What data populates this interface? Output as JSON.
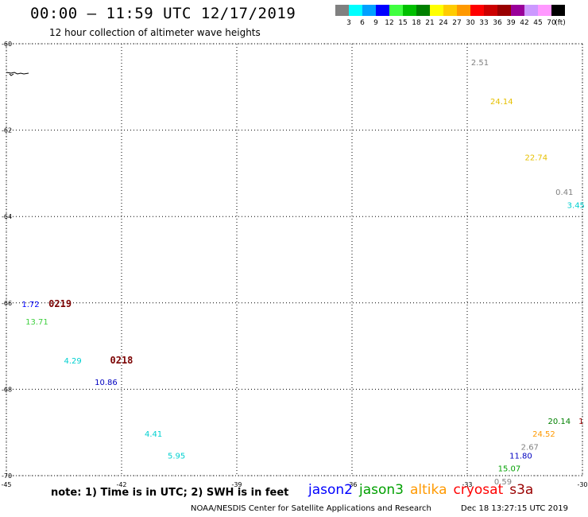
{
  "header": {
    "title": "00:00 — 11:59 UTC 12/17/2019",
    "subtitle": "12 hour collection of altimeter wave heights"
  },
  "colorbar": {
    "unit": "(ft)",
    "bins": [
      {
        "label": "3",
        "color": "#808080"
      },
      {
        "label": "6",
        "color": "#00ffff"
      },
      {
        "label": "9",
        "color": "#00a0ff"
      },
      {
        "label": "12",
        "color": "#0000ff"
      },
      {
        "label": "15",
        "color": "#40ff40"
      },
      {
        "label": "18",
        "color": "#00c000"
      },
      {
        "label": "21",
        "color": "#008000"
      },
      {
        "label": "24",
        "color": "#ffff00"
      },
      {
        "label": "27",
        "color": "#ffcc00"
      },
      {
        "label": "30",
        "color": "#ff9900"
      },
      {
        "label": "33",
        "color": "#ff0000"
      },
      {
        "label": "36",
        "color": "#cc0000"
      },
      {
        "label": "39",
        "color": "#990000"
      },
      {
        "label": "42",
        "color": "#990099"
      },
      {
        "label": "45",
        "color": "#cc99ff"
      },
      {
        "label": "70",
        "color": "#ff99ff"
      },
      {
        "label": "",
        "color": "#000000"
      }
    ]
  },
  "axes": {
    "lat_ticks": [
      "-60",
      "-62",
      "-64",
      "-66",
      "-68",
      "-70"
    ],
    "lon_ticks": [
      "-45",
      "-42",
      "-39",
      "-36",
      "-33",
      "-30"
    ]
  },
  "storms": [
    {
      "label": "0219",
      "lon": -43.9,
      "lat": -66.1
    },
    {
      "label": "0218",
      "lon": -42.3,
      "lat": -67.4
    }
  ],
  "observations": [
    {
      "value": "2.51",
      "lon": -32.9,
      "lat": -60.5,
      "color": "#808080"
    },
    {
      "value": "24.14",
      "lon": -32.4,
      "lat": -61.4,
      "color": "#e6c000"
    },
    {
      "value": "22.74",
      "lon": -31.5,
      "lat": -62.7,
      "color": "#e6c000"
    },
    {
      "value": "0.41",
      "lon": -30.7,
      "lat": -63.5,
      "color": "#808080"
    },
    {
      "value": "3.45",
      "lon": -30.4,
      "lat": -63.8,
      "color": "#00d0d0"
    },
    {
      "value": "1.72",
      "lon": -44.6,
      "lat": -66.1,
      "color": "#0000ff"
    },
    {
      "value": "13.71",
      "lon": -44.5,
      "lat": -66.5,
      "color": "#40d040"
    },
    {
      "value": "4.29",
      "lon": -43.5,
      "lat": -67.4,
      "color": "#00d0d0"
    },
    {
      "value": "10.86",
      "lon": -42.7,
      "lat": -67.9,
      "color": "#0000c0"
    },
    {
      "value": "4.41",
      "lon": -41.4,
      "lat": -69.1,
      "color": "#00d0d0"
    },
    {
      "value": "5.95",
      "lon": -40.8,
      "lat": -69.6,
      "color": "#00d0d0"
    },
    {
      "value": "20.14",
      "lon": -30.9,
      "lat": -68.8,
      "color": "#008000"
    },
    {
      "value": "1",
      "lon": -30.1,
      "lat": -68.8,
      "color": "#990000"
    },
    {
      "value": "24.52",
      "lon": -31.3,
      "lat": -69.1,
      "color": "#ff9900"
    },
    {
      "value": "2.67",
      "lon": -31.6,
      "lat": -69.4,
      "color": "#808080"
    },
    {
      "value": "11.80",
      "lon": -31.9,
      "lat": -69.6,
      "color": "#0000c0"
    },
    {
      "value": "15.07",
      "lon": -32.2,
      "lat": -69.9,
      "color": "#00a000"
    },
    {
      "value": "0.59",
      "lon": -32.3,
      "lat": -70.2,
      "color": "#808080"
    }
  ],
  "note": "note: 1) Time is in UTC; 2) SWH is in feet",
  "legend": [
    {
      "label": "jason2",
      "color": "#0000ff"
    },
    {
      "label": "jason3",
      "color": "#00a000"
    },
    {
      "label": "altika",
      "color": "#ff9900"
    },
    {
      "label": "cryosat",
      "color": "#ff0000"
    },
    {
      "label": "s3a",
      "color": "#990000"
    }
  ],
  "footer": {
    "credit": "NOAA/NESDIS Center for Satellite Applications and Research",
    "generated": "Dec 18 13:27:15 UTC 2019"
  }
}
